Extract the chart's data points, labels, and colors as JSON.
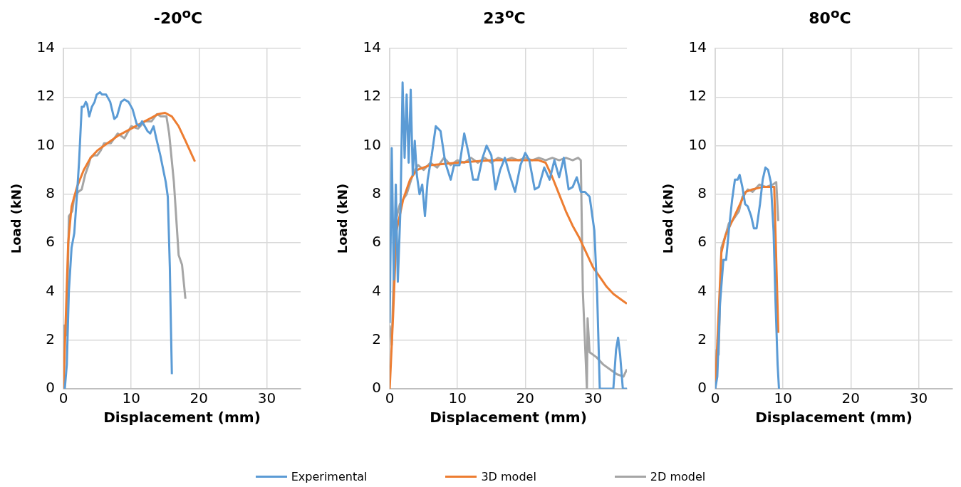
{
  "chart_data": [
    {
      "type": "line",
      "title": "-20$^{o}$C",
      "xlabel": "Displacement (mm)",
      "ylabel": "Load (kN)",
      "xlim": [
        0,
        35
      ],
      "xticks": [
        0,
        10,
        20,
        30
      ],
      "ylim": [
        0,
        14
      ],
      "yticks": [
        0,
        2,
        4,
        6,
        8,
        10,
        12,
        14
      ],
      "grid": true,
      "legend": "bottom",
      "series": [
        {
          "name": "Experimental",
          "color": "#5b9bd5",
          "x": [
            0.2,
            0.5,
            0.8,
            1.2,
            1.6,
            2,
            2.3,
            2.7,
            3,
            3.3,
            3.5,
            3.8,
            4.2,
            4.6,
            4.9,
            5.4,
            5.7,
            6.3,
            6.9,
            7.5,
            7.9,
            8.5,
            9,
            9.6,
            10.2,
            10.8,
            11.2,
            11.6,
            12,
            12.4,
            12.8,
            13.3,
            13.7,
            14.3,
            15.1,
            15.4,
            15.7,
            15.9,
            16
          ],
          "values": [
            0,
            1,
            4,
            5.8,
            6.4,
            8,
            9.3,
            11.6,
            11.6,
            11.8,
            11.7,
            11.2,
            11.6,
            11.8,
            12.1,
            12.2,
            12.1,
            12.1,
            11.8,
            11.1,
            11.2,
            11.8,
            11.9,
            11.8,
            11.5,
            10.9,
            10.8,
            11,
            10.8,
            10.6,
            10.5,
            10.8,
            10.3,
            9.6,
            8.5,
            7.9,
            5,
            2,
            0.6
          ]
        },
        {
          "name": "3D model",
          "color": "#ed7d31",
          "x": [
            0,
            0.3,
            0.7,
            1.2,
            2,
            3,
            4,
            5,
            6,
            8,
            10,
            12,
            13,
            14,
            15,
            16,
            17,
            18,
            19.4
          ],
          "values": [
            0,
            2.5,
            6,
            7.5,
            8.3,
            9,
            9.5,
            9.8,
            10,
            10.4,
            10.7,
            11,
            11.15,
            11.3,
            11.35,
            11.2,
            10.8,
            10.2,
            9.35
          ]
        },
        {
          "name": "2D model",
          "color": "#a5a5a5",
          "x": [
            0,
            0.1,
            0.3,
            0.5,
            0.8,
            1.3,
            1.6,
            2.2,
            2.7,
            3.2,
            3.7,
            4,
            4.5,
            5,
            5.5,
            6,
            7,
            8,
            9,
            10,
            11,
            12,
            13,
            13.8,
            14.4,
            15.2,
            15.6,
            16.3,
            17,
            17.5,
            18
          ],
          "values": [
            0,
            2.6,
            2.6,
            2.2,
            7.1,
            7.3,
            7.9,
            8.1,
            8.2,
            8.8,
            9.2,
            9.5,
            9.6,
            9.6,
            9.8,
            10.1,
            10.1,
            10.5,
            10.3,
            10.8,
            10.7,
            11,
            11,
            11.3,
            11.2,
            11.2,
            10.5,
            8.5,
            5.5,
            5.1,
            3.7
          ]
        }
      ]
    },
    {
      "type": "line",
      "title": "23$^{o}$C",
      "xlabel": "Displacement (mm)",
      "ylabel": "Load (kN)",
      "xlim": [
        0,
        35
      ],
      "xticks": [
        0,
        10,
        20,
        30
      ],
      "ylim": [
        0,
        14
      ],
      "yticks": [
        0,
        2,
        4,
        6,
        8,
        10,
        12,
        14
      ],
      "grid": true,
      "series": [
        {
          "color": "#5b9bd5",
          "x": [
            0,
            0.3,
            0.6,
            0.9,
            1.2,
            1.6,
            1.9,
            2.2,
            2.5,
            2.8,
            3.1,
            3.4,
            3.7,
            4,
            4.4,
            4.8,
            5.2,
            5.6,
            6.2,
            6.8,
            7.5,
            8.2,
            9,
            9.5,
            10.3,
            11,
            11.7,
            12.3,
            13,
            13.7,
            14.3,
            15,
            15.6,
            16.3,
            17,
            17.7,
            18.5,
            19.3,
            20,
            20.6,
            21.4,
            22,
            22.8,
            23.6,
            24.3,
            25,
            25.7,
            26.4,
            27,
            27.6,
            28.2,
            28.8,
            29.5,
            30.2,
            30.6,
            31,
            33,
            33.4,
            33.7,
            34,
            34.4,
            35
          ],
          "values": [
            2.7,
            9.9,
            4.5,
            8.4,
            4.4,
            7.5,
            12.6,
            9.5,
            12.1,
            9.3,
            12.3,
            8.8,
            10.2,
            8.8,
            8,
            8.4,
            7.1,
            8.6,
            9.6,
            10.8,
            10.6,
            9.3,
            8.6,
            9.2,
            9.2,
            10.5,
            9.6,
            8.6,
            8.6,
            9.5,
            10,
            9.6,
            8.2,
            9,
            9.5,
            8.8,
            8.1,
            9.2,
            9.7,
            9.4,
            8.2,
            8.3,
            9.1,
            8.6,
            9.4,
            8.7,
            9.5,
            8.2,
            8.3,
            8.7,
            8.1,
            8.1,
            7.9,
            6.5,
            4,
            0,
            0,
            1.6,
            2.1,
            1.4,
            0,
            0
          ]
        },
        {
          "color": "#ed7d31",
          "x": [
            0,
            0.5,
            1,
            2,
            3,
            4,
            6,
            10,
            15,
            20,
            22,
            23,
            24,
            25,
            26,
            27,
            28,
            29,
            30,
            31,
            32,
            33,
            34,
            35
          ],
          "values": [
            0,
            3,
            6.5,
            7.8,
            8.6,
            9,
            9.2,
            9.3,
            9.4,
            9.4,
            9.4,
            9.3,
            8.7,
            8,
            7.3,
            6.7,
            6.2,
            5.6,
            5,
            4.6,
            4.2,
            3.9,
            3.7,
            3.5
          ]
        },
        {
          "color": "#a5a5a5",
          "x": [
            0,
            0.3,
            0.8,
            1.5,
            2.5,
            3.5,
            4.2,
            5,
            6,
            7,
            8,
            9,
            10,
            11,
            12,
            13,
            14,
            15,
            16,
            17,
            18,
            19,
            20,
            21,
            22,
            23,
            24,
            25,
            26,
            27,
            27.8,
            28.2,
            28.5,
            28.8,
            29.1,
            29.2,
            29.5,
            30.5,
            31.5,
            32.5,
            33.5,
            34.5,
            35
          ],
          "values": [
            2.6,
            1.8,
            6.8,
            7.6,
            8,
            8.9,
            9.2,
            9,
            9.3,
            9.1,
            9.5,
            9.2,
            9.4,
            9.3,
            9.5,
            9.3,
            9.5,
            9.3,
            9.5,
            9.4,
            9.5,
            9.4,
            9.5,
            9.4,
            9.5,
            9.4,
            9.5,
            9.4,
            9.5,
            9.4,
            9.5,
            9.4,
            4,
            2,
            0,
            2.9,
            1.5,
            1.3,
            1,
            0.8,
            0.6,
            0.5,
            0.8
          ]
        }
      ]
    },
    {
      "type": "line",
      "title": "80$^{o}$C",
      "xlabel": "Displacement (mm)",
      "ylabel": "Load (kN)",
      "xlim": [
        0,
        35
      ],
      "xticks": [
        0,
        10,
        20,
        30
      ],
      "ylim": [
        0,
        14
      ],
      "yticks": [
        0,
        2,
        4,
        6,
        8,
        10,
        12,
        14
      ],
      "grid": true,
      "series": [
        {
          "color": "#5b9bd5",
          "x": [
            0,
            0.3,
            0.7,
            1.2,
            1.6,
            2,
            2.5,
            2.9,
            3.3,
            3.6,
            4,
            4.4,
            4.8,
            5.3,
            5.7,
            6.1,
            6.6,
            7,
            7.4,
            7.8,
            8.2,
            8.6,
            8.9,
            9.2,
            9.4
          ],
          "values": [
            0,
            0.5,
            3.5,
            5.3,
            5.3,
            6.5,
            7.8,
            8.6,
            8.6,
            8.8,
            8.3,
            7.6,
            7.5,
            7.1,
            6.6,
            6.6,
            7.6,
            8.6,
            9.1,
            9,
            8.5,
            6.5,
            3.5,
            1,
            0
          ]
        },
        {
          "color": "#ed7d31",
          "x": [
            0,
            0.4,
            0.9,
            1.5,
            2.5,
            3.5,
            4.5,
            5.5,
            7,
            8.7,
            9.3
          ],
          "values": [
            0,
            2.5,
            5.6,
            6.3,
            6.9,
            7.5,
            8.1,
            8.2,
            8.3,
            8.3,
            2.3
          ]
        },
        {
          "color": "#a5a5a5",
          "x": [
            0,
            0.2,
            0.5,
            0.9,
            1.5,
            2,
            2.5,
            3.5,
            4,
            4.8,
            5.5,
            6.5,
            7.5,
            8.5,
            9,
            9.3
          ],
          "values": [
            0,
            1.6,
            1.4,
            5.8,
            6.3,
            6.8,
            6.9,
            7.3,
            7.9,
            8.2,
            8.1,
            8.4,
            8.3,
            8.4,
            8.5,
            6.9
          ]
        }
      ]
    }
  ]
}
